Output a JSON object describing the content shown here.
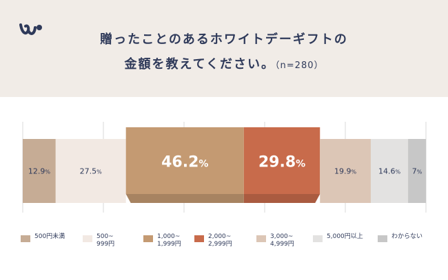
{
  "header": {
    "title_line1": "贈ったことのあるホワイトデーギフトの",
    "title_line2": "金額を教えてください。",
    "sample_note": "（n=280）",
    "logo": "brand-logo-icon"
  },
  "chart_data": {
    "type": "bar",
    "orientation": "horizontal-stacked-100",
    "categories": [
      "500円未満",
      "500~999円",
      "1,000~1,999円",
      "2,000~2,999円",
      "3,000~4,999円",
      "5,000円以上",
      "わからない"
    ],
    "values": [
      12.9,
      27.5,
      46.2,
      29.8,
      19.9,
      14.6,
      7
    ],
    "value_labels": [
      "12.9",
      "27.5",
      "46.2",
      "29.8",
      "19.9",
      "14.6",
      "7"
    ],
    "unit": "%",
    "colors": [
      "#c6ac95",
      "#f2e9e3",
      "#c49a72",
      "#c86b4b",
      "#dcc6b6",
      "#e3e2e1",
      "#c7c7c7"
    ],
    "highlighted": [
      2,
      3
    ],
    "grid": true,
    "legend_position": "bottom"
  },
  "legend": [
    {
      "label": "500円未満",
      "color": "#c6ac95"
    },
    {
      "label": "500~\n999円",
      "color": "#f2e9e3"
    },
    {
      "label": "1,000~\n1,999円",
      "color": "#c49a72"
    },
    {
      "label": "2,000~\n2,999円",
      "color": "#c86b4b"
    },
    {
      "label": "3,000~\n4,999円",
      "color": "#dcc6b6"
    },
    {
      "label": "5,000円以上",
      "color": "#e3e2e1"
    },
    {
      "label": "わからない",
      "color": "#c7c7c7"
    }
  ]
}
